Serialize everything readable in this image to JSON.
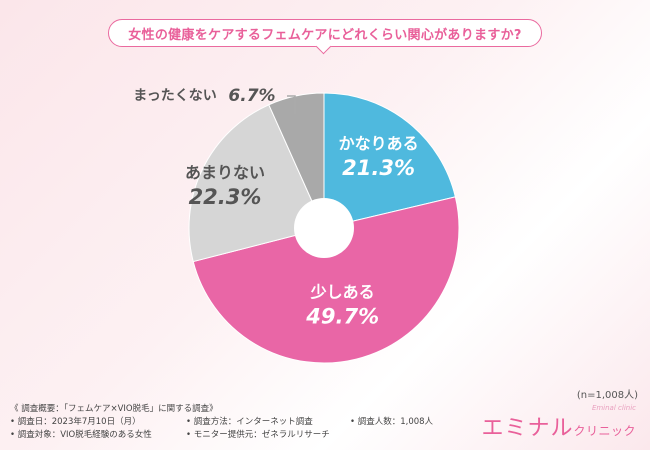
{
  "question": "女性の健康をケアするフェムケアにどれくらい関心がありますか?",
  "sample_note": "(n=1,008人)",
  "footer": {
    "title": "《 調査概要：「フェムケア×VIO脱毛」に関する調査》",
    "items": [
      "調査日：2023年7月10日（月）",
      "調査方法：インターネット調査",
      "調査人数：1,008人",
      "調査対象：VIO脱毛経験のある女性",
      "モニター提供元：ゼネラルリサーチ"
    ]
  },
  "brand": {
    "name": "エミナル",
    "name_small": "クリニック",
    "sub": "Eminal clinic"
  },
  "chart_data": {
    "type": "pie",
    "donut": true,
    "start_angle": "12 o'clock",
    "direction": "clockwise",
    "slices": [
      {
        "label": "かなりある",
        "value": 21.3,
        "display": "21.3%",
        "color": "#4fb9de",
        "text_color": "#ffffff"
      },
      {
        "label": "少しある",
        "value": 49.7,
        "display": "49.7%",
        "color": "#e966a6",
        "text_color": "#ffffff"
      },
      {
        "label": "あまりない",
        "value": 22.3,
        "display": "22.3%",
        "color": "#d6d6d6",
        "text_color": "#555555"
      },
      {
        "label": "まったくない",
        "value": 6.7,
        "display": "6.7%",
        "color": "#a9a9a9",
        "text_color": "#555555"
      }
    ]
  }
}
